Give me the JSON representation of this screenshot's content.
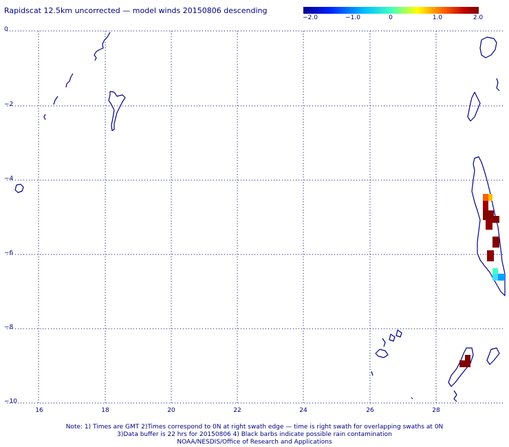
{
  "title": "Rapidscat 12.5km uncorrected — model winds 20150806 descending",
  "colorbar": {
    "labels": [
      "−2.0",
      "−1.0",
      "0",
      "1.0",
      "2.0"
    ],
    "colors": [
      "#00008f",
      "#0040ff",
      "#00ffff",
      "#ffff00",
      "#ff4000",
      "#800000"
    ],
    "range": [
      -2.0,
      2.0
    ]
  },
  "axes": {
    "y_ticks": [
      "0",
      "−2",
      "−4",
      "−6",
      "−8",
      "−10"
    ],
    "x_ticks": [
      "16",
      "18",
      "20",
      "22",
      "24",
      "26",
      "28"
    ],
    "lon_range": [
      15,
      30
    ],
    "lat_range": [
      -10,
      0
    ],
    "grid": true
  },
  "footer": {
    "line1": "Note: 1) Times are GMT 2)Times correspond to 0N at right swath edge — time is right swath for overlapping swaths at 0N",
    "line2": "3)Data buffer is 22 hrs for 20150806 4) Black barbs indicate possible rain contamination",
    "line3": "NOAA/NESDIS/Office of Research and Applications"
  },
  "colors": {
    "coast": "#000080",
    "grid": "#000080",
    "text": "#000080"
  }
}
